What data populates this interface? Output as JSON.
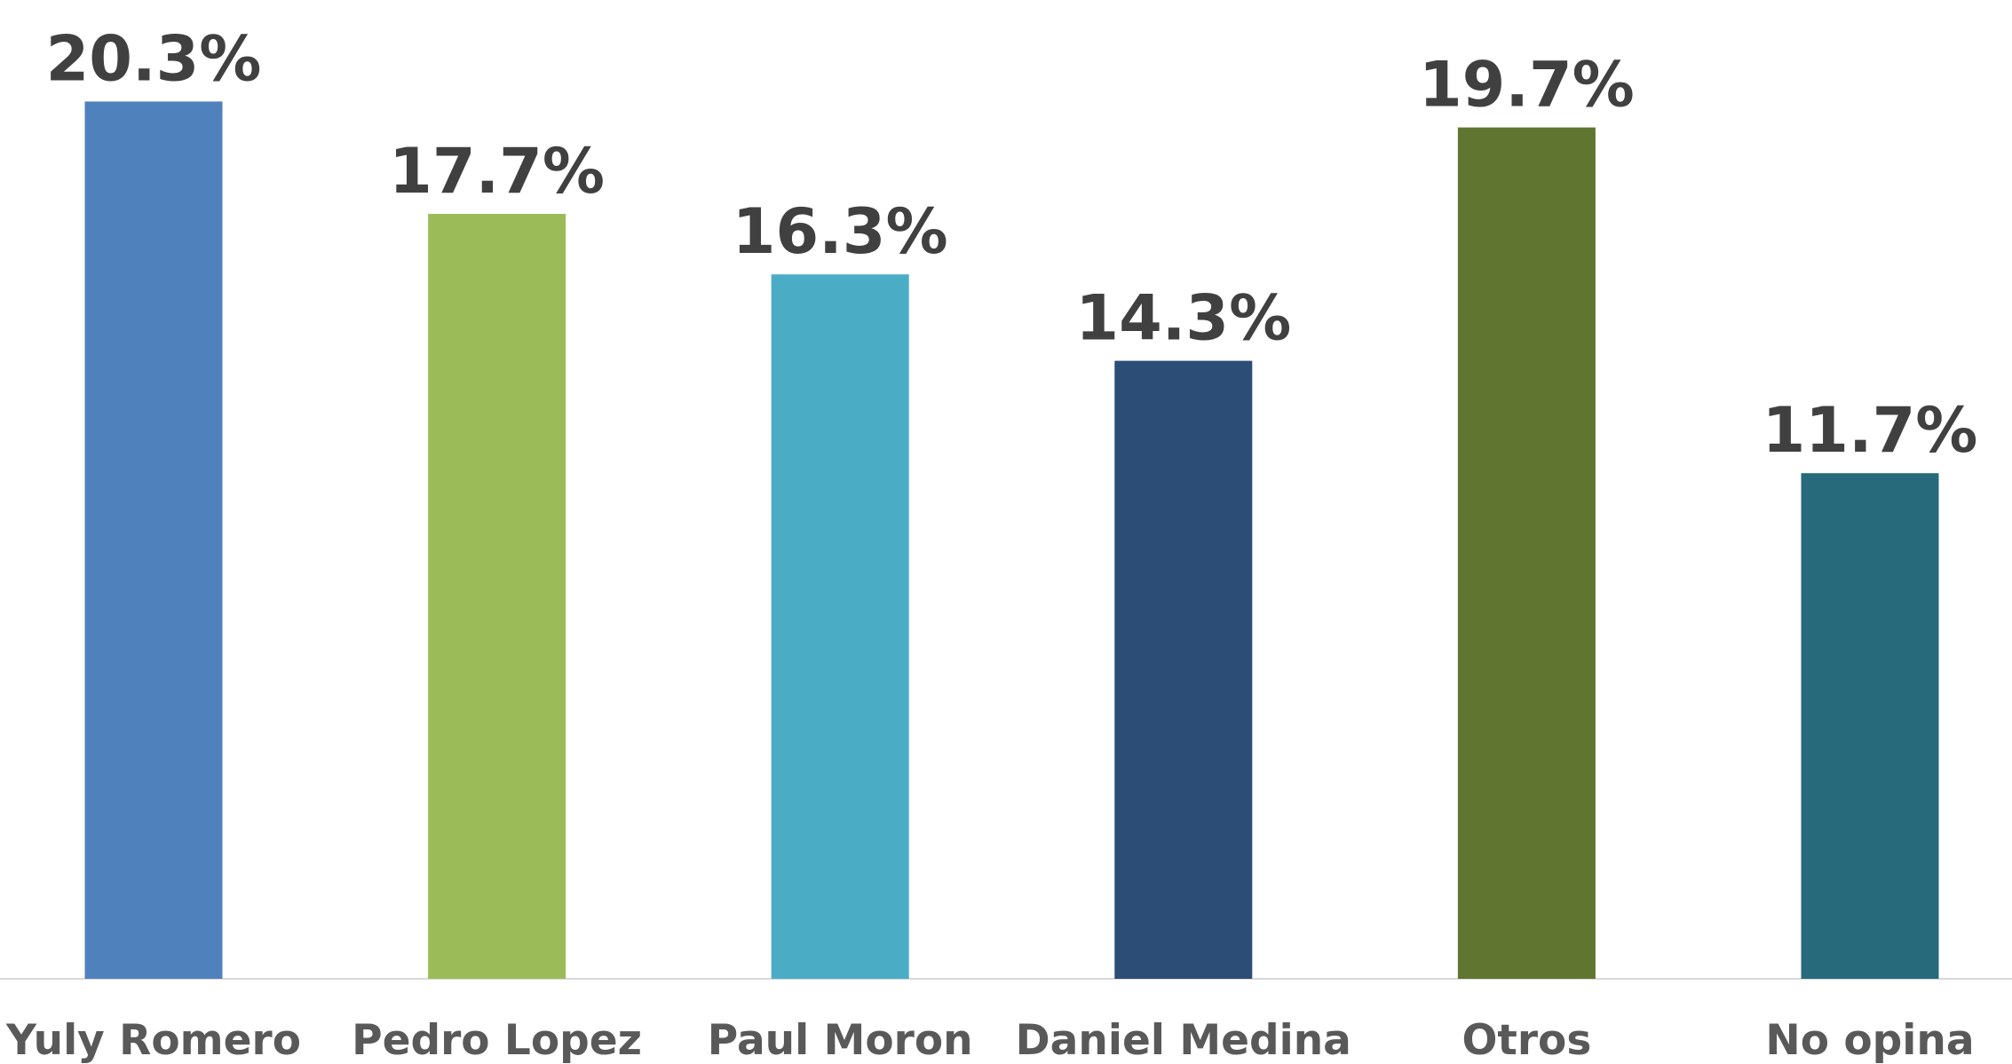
{
  "chart_data": {
    "type": "bar",
    "categories": [
      "Yuly Romero",
      "Pedro Lopez",
      "Paul Moron",
      "Daniel Medina",
      "Otros",
      "No opina"
    ],
    "values": [
      20.3,
      17.7,
      16.3,
      14.3,
      19.7,
      11.7
    ],
    "value_labels": [
      "20.3%",
      "17.7%",
      "16.3%",
      "14.3%",
      "19.7%",
      "11.7%"
    ],
    "colors": [
      "#4f81bd",
      "#9bbb59",
      "#4bacc6",
      "#2c4d75",
      "#5f7530",
      "#276a7c"
    ]
  }
}
